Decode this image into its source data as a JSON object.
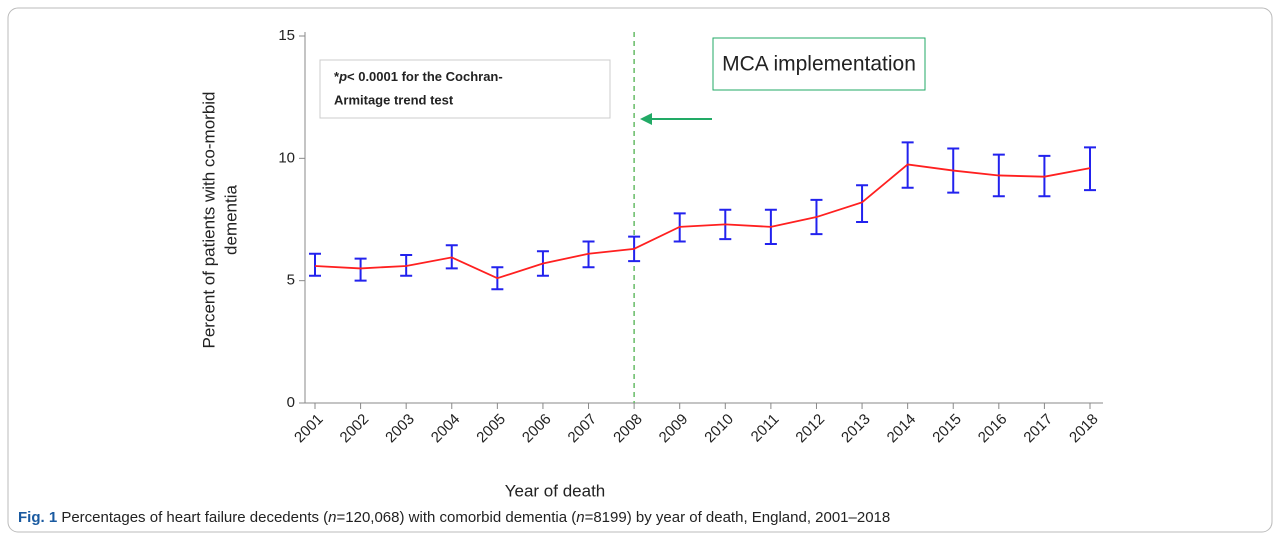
{
  "chart_data": {
    "type": "line",
    "categories": [
      "2001",
      "2002",
      "2003",
      "2004",
      "2005",
      "2006",
      "2007",
      "2008",
      "2009",
      "2010",
      "2011",
      "2012",
      "2013",
      "2014",
      "2015",
      "2016",
      "2017",
      "2018"
    ],
    "series": [
      {
        "color": "#ff2020",
        "error_color": "#2222ee",
        "values": [
          5.6,
          5.5,
          5.6,
          5.95,
          5.1,
          5.7,
          6.1,
          6.3,
          7.2,
          7.3,
          7.2,
          7.6,
          8.2,
          9.75,
          9.5,
          9.3,
          9.25,
          9.6
        ],
        "lower": [
          5.2,
          5.0,
          5.2,
          5.5,
          4.65,
          5.2,
          5.55,
          5.8,
          6.6,
          6.7,
          6.5,
          6.9,
          7.4,
          8.8,
          8.6,
          8.45,
          8.45,
          8.7
        ],
        "upper": [
          6.1,
          5.9,
          6.05,
          6.45,
          5.55,
          6.2,
          6.6,
          6.8,
          7.75,
          7.9,
          7.9,
          8.3,
          8.9,
          10.65,
          10.4,
          10.15,
          10.1,
          10.45
        ]
      }
    ],
    "ylim": [
      0,
      15
    ],
    "yticks": [
      0,
      5,
      10,
      15
    ],
    "ylabel_lines": [
      "Percent of patients with co-morbid",
      "dementia"
    ],
    "xlabel": "Year of death",
    "vline_category": "2008",
    "vline_color": "#66bb66",
    "note_parts": [
      "*",
      "p",
      "< 0.0001 for the Cochran-"
    ],
    "note_line2": "Armitage trend test",
    "callout": "MCA implementation",
    "callout_color": "#22aa66"
  },
  "caption": {
    "label": "Fig. 1",
    "parts": [
      " Percentages of heart failure decedents (",
      "n",
      "=120,068) with comorbid dementia (",
      "n",
      "=8199) by year of death, England, 2001–2018"
    ]
  }
}
